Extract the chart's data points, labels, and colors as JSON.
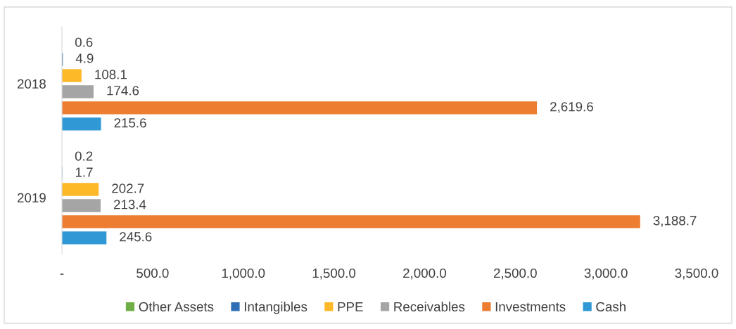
{
  "chart_data": {
    "type": "bar",
    "orientation": "horizontal",
    "categories": [
      "2018",
      "2019"
    ],
    "series": [
      {
        "name": "Other Assets",
        "color": "#70ad47",
        "values": [
          0.6,
          0.2
        ],
        "value_labels": [
          "0.6",
          "0.2"
        ]
      },
      {
        "name": "Intangibles",
        "color": "#2e6eb5",
        "values": [
          4.9,
          1.7
        ],
        "value_labels": [
          "4.9",
          "1.7"
        ]
      },
      {
        "name": "PPE",
        "color": "#fdb927",
        "values": [
          108.1,
          202.7
        ],
        "value_labels": [
          "108.1",
          "202.7"
        ]
      },
      {
        "name": "Receivables",
        "color": "#a5a5a5",
        "values": [
          174.6,
          213.4
        ],
        "value_labels": [
          "174.6",
          "213.4"
        ]
      },
      {
        "name": "Investments",
        "color": "#ed7d31",
        "values": [
          2619.6,
          3188.7
        ],
        "value_labels": [
          "2,619.6",
          "3,188.7"
        ]
      },
      {
        "name": "Cash",
        "color": "#2f98d5",
        "values": [
          215.6,
          245.6
        ],
        "value_labels": [
          "215.6",
          "245.6"
        ]
      }
    ],
    "xlim": [
      0,
      3500
    ],
    "xticks": [
      {
        "value": 0,
        "label": "-"
      },
      {
        "value": 500,
        "label": "500.0"
      },
      {
        "value": 1000,
        "label": "1,000.0"
      },
      {
        "value": 1500,
        "label": "1,500.0"
      },
      {
        "value": 2000,
        "label": "2,000.0"
      },
      {
        "value": 2500,
        "label": "2,500.0"
      },
      {
        "value": 3000,
        "label": "3,000.0"
      },
      {
        "value": 3500,
        "label": "3,500.0"
      }
    ],
    "grid": false,
    "legend": "bottom"
  }
}
